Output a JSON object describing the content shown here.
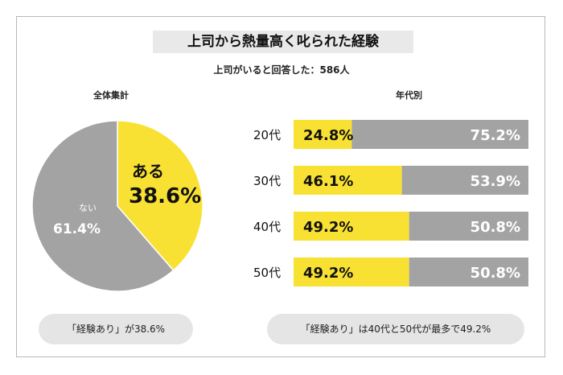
{
  "title": "上司から熱量高く叱られた経験",
  "subtitle": "上司がいると回答した：586人",
  "colors": {
    "yellow": "#f8e133",
    "gray": "#a3a3a3",
    "white": "#ffffff",
    "dark": "#111111"
  },
  "pie_section_label": "全体集計",
  "bar_section_label": "年代別",
  "chart_data": [
    {
      "type": "pie",
      "title": "全体集計",
      "slices": [
        {
          "label": "ある",
          "value": 38.6,
          "display": "38.6%",
          "color": "#f8e133"
        },
        {
          "label": "ない",
          "value": 61.4,
          "display": "61.4%",
          "color": "#a3a3a3"
        }
      ]
    },
    {
      "type": "bar",
      "orientation": "horizontal",
      "stacked": true,
      "title": "年代別",
      "categories": [
        "20代",
        "30代",
        "40代",
        "50代"
      ],
      "series": [
        {
          "values": [
            24.8,
            46.1,
            49.2,
            49.2
          ],
          "display": [
            "24.8%",
            "46.1%",
            "49.2%",
            "49.2%"
          ],
          "color": "#f8e133"
        },
        {
          "values": [
            75.2,
            53.9,
            50.8,
            50.8
          ],
          "display": [
            "75.2%",
            "53.9%",
            "50.8%",
            "50.8%"
          ],
          "color": "#a3a3a3"
        }
      ]
    }
  ],
  "pie_note": "「経験あり」が38.6%",
  "bar_note": "「経験あり」は40代と50代が最多で49.2%"
}
